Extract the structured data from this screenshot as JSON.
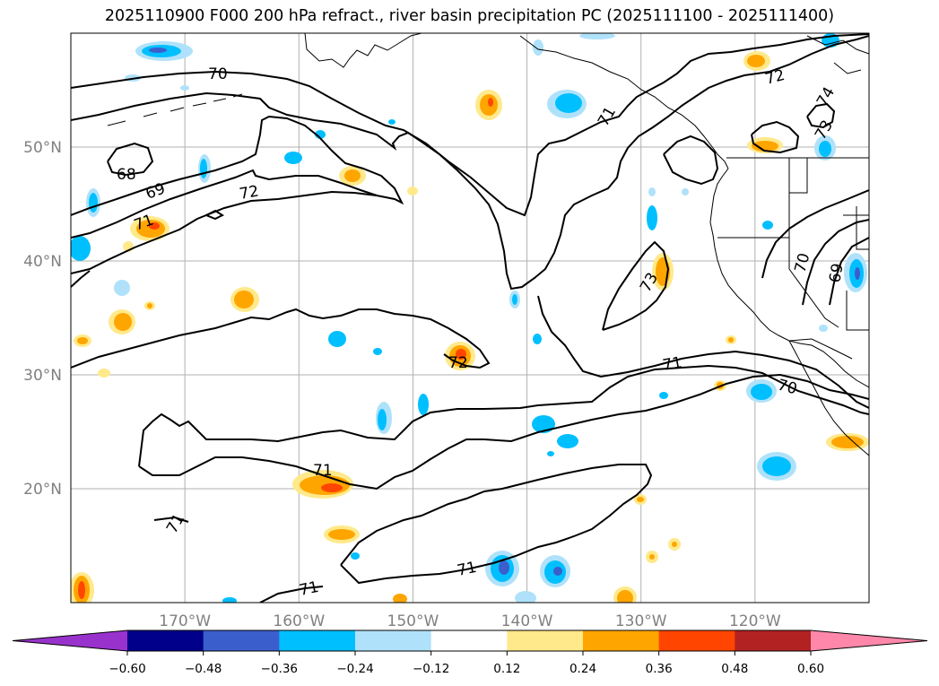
{
  "title": "2025110900 F000 200 hPa refract., river basin precipitation PC (2025111100 - 2025111400)",
  "map": {
    "lon_range": [
      -180,
      -110
    ],
    "lat_range": [
      10,
      60
    ],
    "lat_ticks": [
      {
        "value": 50,
        "label": "50°N"
      },
      {
        "value": 40,
        "label": "40°N"
      },
      {
        "value": 30,
        "label": "30°N"
      },
      {
        "value": 20,
        "label": "20°N"
      }
    ],
    "lon_ticks": [
      {
        "value": -170,
        "label": "170°W"
      },
      {
        "value": -160,
        "label": "160°W"
      },
      {
        "value": -150,
        "label": "150°W"
      },
      {
        "value": -140,
        "label": "140°W"
      },
      {
        "value": -130,
        "label": "130°W"
      },
      {
        "value": -120,
        "label": "120°W"
      }
    ],
    "gridlines": true
  },
  "contour_labels": [
    "70",
    "72",
    "71",
    "73",
    "74",
    "68",
    "69",
    "72",
    "71",
    "73",
    "70",
    "69",
    "72",
    "71",
    "70",
    "71",
    "71",
    "71",
    "71"
  ],
  "colorbar": {
    "levels": [
      "−0.60",
      "−0.48",
      "−0.36",
      "−0.24",
      "−0.12",
      "0.12",
      "0.24",
      "0.36",
      "0.48",
      "0.60"
    ],
    "colors": [
      "#9932cc",
      "#00008b",
      "#3a5fcd",
      "#00bfff",
      "#afe2fa",
      "#ffffff",
      "#ffe98a",
      "#ffa500",
      "#ff4500",
      "#b22222",
      "#ff88aa"
    ]
  }
}
